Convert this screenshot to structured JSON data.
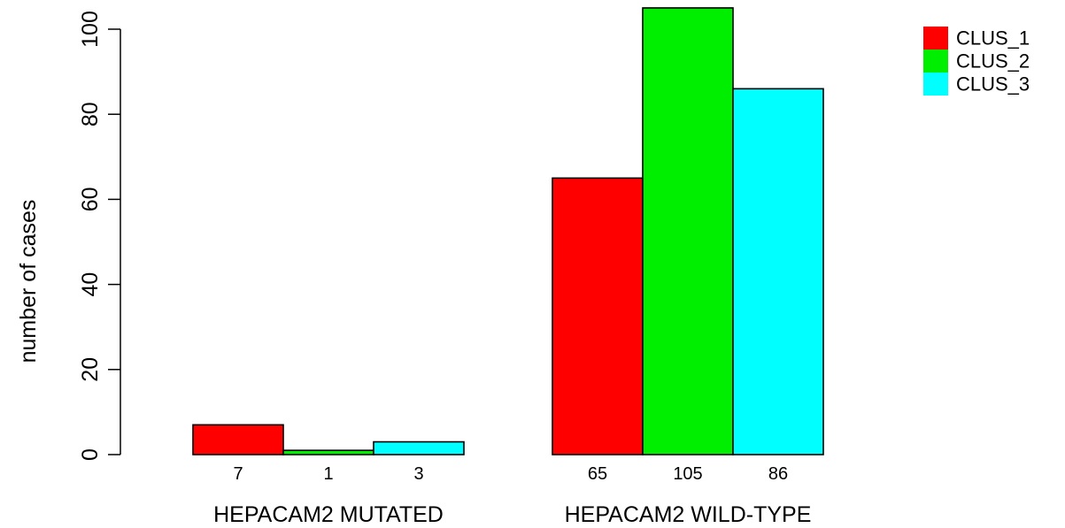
{
  "chart_data": {
    "type": "bar",
    "layout": "grouped",
    "categories": [
      "HEPACAM2 MUTATED",
      "HEPACAM2 WILD-TYPE"
    ],
    "series": [
      {
        "name": "CLUS_1",
        "color": "#ff0000",
        "values": [
          7,
          65
        ]
      },
      {
        "name": "CLUS_2",
        "color": "#00ee00",
        "values": [
          1,
          105
        ]
      },
      {
        "name": "CLUS_3",
        "color": "#00ffff",
        "values": [
          3,
          86
        ]
      }
    ],
    "title": "",
    "xlabel": "",
    "ylabel": "number of cases",
    "yticks": [
      0,
      20,
      40,
      60,
      80,
      100
    ],
    "ylim": [
      0,
      105
    ],
    "grid": false,
    "legend": {
      "position": "top-right"
    },
    "bar_value_labels": true
  }
}
